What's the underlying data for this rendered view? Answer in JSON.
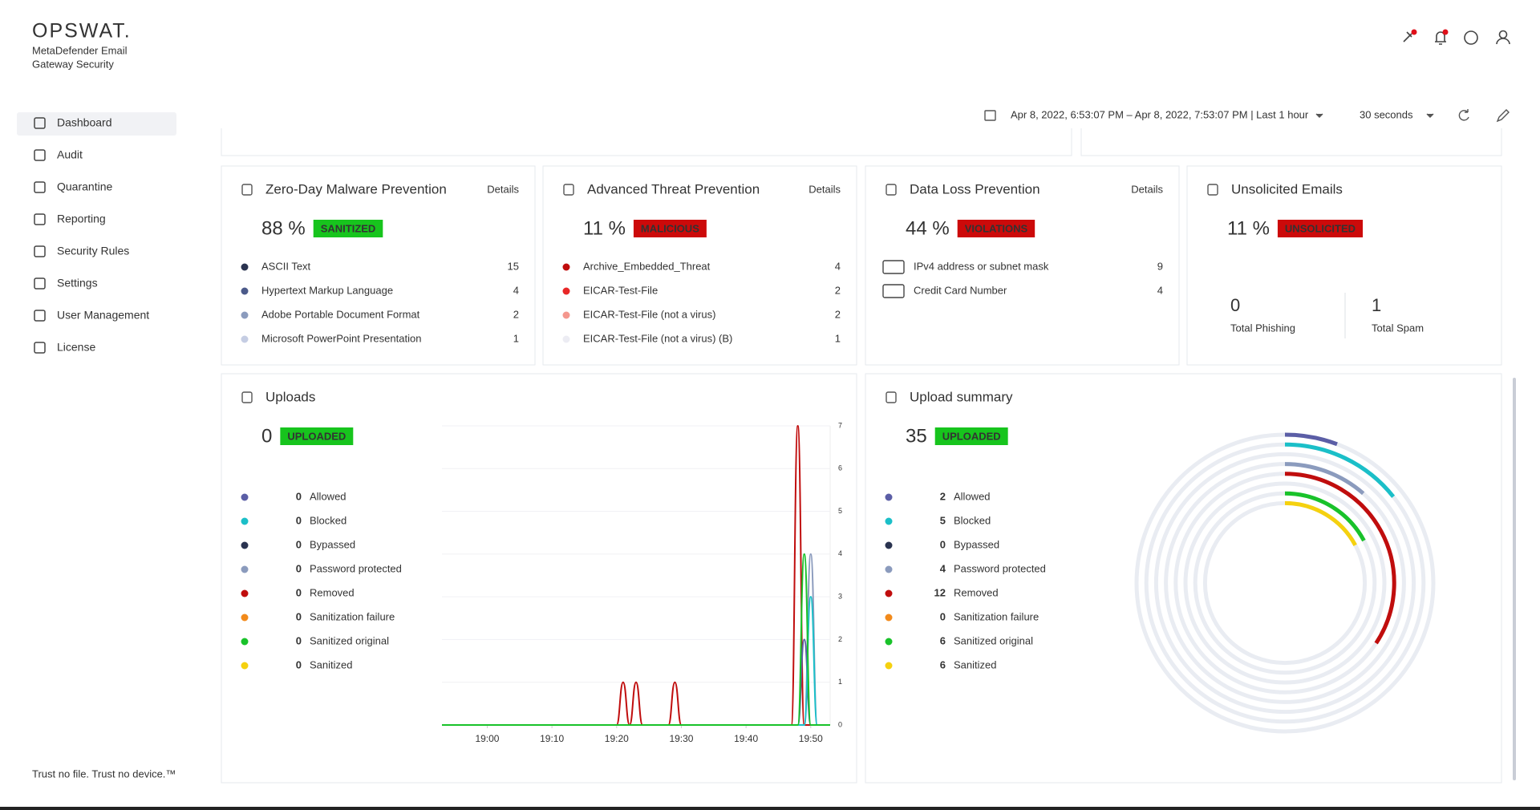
{
  "brand": {
    "logo": "OPSWAT.",
    "product_line1": "MetaDefender Email",
    "product_line2": "Gateway Security"
  },
  "nav": [
    "Dashboard",
    "Audit",
    "Quarantine",
    "Reporting",
    "Security Rules",
    "Settings",
    "User Management",
    "License"
  ],
  "footer": "Trust no file. Trust no device.™",
  "toolbar": {
    "date_range": "Apr 8, 2022, 6:53:07 PM – Apr 8, 2022, 7:53:07 PM | Last 1 hour",
    "refresh": "30 seconds"
  },
  "cards": [
    {
      "title": "Zero-Day Malware Prevention",
      "link": "Details",
      "percent": "88 %",
      "badge": "SANITIZED",
      "badge_color": "#17c41d",
      "items": [
        {
          "label": "ASCII Text",
          "count": 15,
          "color": "#2a3350"
        },
        {
          "label": "Hypertext Markup Language",
          "count": 4,
          "color": "#4b5a8a"
        },
        {
          "label": "Adobe Portable Document Format",
          "count": 2,
          "color": "#8b9bbd"
        },
        {
          "label": "Microsoft PowerPoint Presentation",
          "count": 1,
          "color": "#c5cde3"
        }
      ]
    },
    {
      "title": "Advanced Threat Prevention",
      "link": "Details",
      "percent": "11 %",
      "badge": "MALICIOUS",
      "badge_color": "#cc0a0a",
      "items": [
        {
          "label": "Archive_Embedded_Threat",
          "count": 4,
          "color": "#c00d0d"
        },
        {
          "label": "EICAR-Test-File",
          "count": 2,
          "color": "#e82727"
        },
        {
          "label": "EICAR-Test-File (not a virus)",
          "count": 2,
          "color": "#f4978e"
        },
        {
          "label": "EICAR-Test-File (not a virus) (B)",
          "count": 1,
          "color": "#ececf3"
        }
      ]
    },
    {
      "title": "Data Loss Prevention",
      "link": "Details",
      "percent": "44 %",
      "badge": "VIOLATIONS",
      "badge_color": "#cc0a0a",
      "items": [
        {
          "label": "IPv4 address or subnet mask",
          "count": 9
        },
        {
          "label": "Credit Card Number",
          "count": 4
        }
      ]
    }
  ],
  "unsolicited": {
    "title": "Unsolicited Emails",
    "percent": "11 %",
    "badge": "UNSOLICITED",
    "badge_color": "#cc0a0a",
    "stats": [
      {
        "value": 0,
        "label": "Total Phishing",
        "color": "#c00d0d"
      },
      {
        "value": 1,
        "label": "Total Spam",
        "color": "#f2a31b"
      }
    ]
  },
  "uploads": {
    "title": "Uploads",
    "total": 0,
    "badge": "UPLOADED",
    "badge_color": "#17c41d",
    "items": [
      {
        "label": "Allowed",
        "count": 0,
        "color": "#5b5ea6"
      },
      {
        "label": "Blocked",
        "count": 0,
        "color": "#1bbfc8"
      },
      {
        "label": "Bypassed",
        "count": 0,
        "color": "#2a3350"
      },
      {
        "label": "Password protected",
        "count": 0,
        "color": "#8b9bbd"
      },
      {
        "label": "Removed",
        "count": 0,
        "color": "#c00d0d"
      },
      {
        "label": "Sanitization failure",
        "count": 0,
        "color": "#f28a1b"
      },
      {
        "label": "Sanitized original",
        "count": 0,
        "color": "#19c22a"
      },
      {
        "label": "Sanitized",
        "count": 0,
        "color": "#f5d10f"
      }
    ],
    "chart": {
      "type": "line",
      "x": [
        1133,
        1160,
        1161,
        1162,
        1163,
        1164,
        1168,
        1169,
        1170,
        1187,
        1188,
        1189,
        1190,
        1191,
        1193
      ],
      "series": [
        {
          "color": "#c00d0d",
          "values": [
            0,
            0,
            1,
            0,
            1,
            0,
            0,
            1,
            0,
            0,
            7,
            0,
            0,
            0,
            0
          ]
        },
        {
          "color": "#8b9bbd",
          "values": [
            0,
            0,
            0,
            0,
            0,
            0,
            0,
            0,
            0,
            0,
            0,
            0,
            4,
            0,
            0
          ]
        },
        {
          "color": "#5b5ea6",
          "values": [
            0,
            0,
            0,
            0,
            0,
            0,
            0,
            0,
            0,
            0,
            0,
            2,
            0,
            0,
            0
          ]
        },
        {
          "color": "#1bbfc8",
          "values": [
            0,
            0,
            0,
            0,
            0,
            0,
            0,
            0,
            0,
            0,
            0,
            0,
            3,
            0,
            0
          ]
        },
        {
          "color": "#19c22a",
          "values": [
            0,
            0,
            0,
            0,
            0,
            0,
            0,
            0,
            0,
            0,
            0,
            4,
            0,
            0,
            0
          ]
        }
      ],
      "xlim": [
        1133,
        1193
      ],
      "xticks": [
        {
          "value": 1140,
          "label": "19:00"
        },
        {
          "value": 1150,
          "label": "19:10"
        },
        {
          "value": 1160,
          "label": "19:20"
        },
        {
          "value": 1170,
          "label": "19:30"
        },
        {
          "value": 1180,
          "label": "19:40"
        },
        {
          "value": 1190,
          "label": "19:50"
        }
      ],
      "ylim": [
        0,
        7
      ],
      "yticks": [
        0,
        1,
        2,
        3,
        4,
        5,
        6,
        7
      ],
      "grid": true
    }
  },
  "upload_summary": {
    "title": "Upload summary",
    "total": 35,
    "badge": "UPLOADED",
    "badge_color": "#17c41d",
    "items": [
      {
        "label": "Allowed",
        "count": 2,
        "color": "#5b5ea6"
      },
      {
        "label": "Blocked",
        "count": 5,
        "color": "#1bbfc8"
      },
      {
        "label": "Bypassed",
        "count": 0,
        "color": "#2a3350"
      },
      {
        "label": "Password protected",
        "count": 4,
        "color": "#8b9bbd"
      },
      {
        "label": "Removed",
        "count": 12,
        "color": "#c00d0d"
      },
      {
        "label": "Sanitization failure",
        "count": 0,
        "color": "#f28a1b"
      },
      {
        "label": "Sanitized original",
        "count": 6,
        "color": "#19c22a"
      },
      {
        "label": "Sanitized",
        "count": 6,
        "color": "#f5d10f"
      }
    ]
  }
}
